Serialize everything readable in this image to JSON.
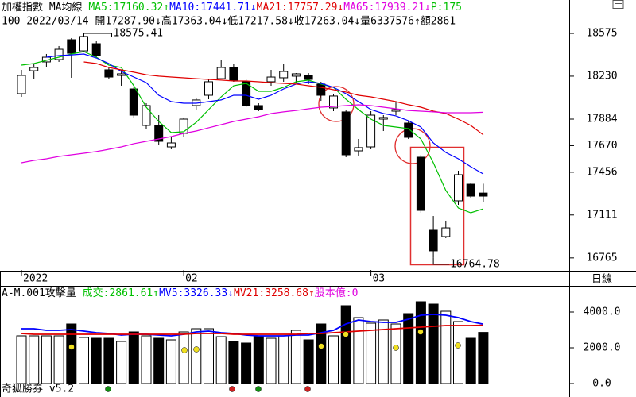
{
  "chart_data": [
    {
      "type": "candlestick",
      "title": "加權指數 MA均線",
      "info": "100 2022/03/14 開17287.90↓高17363.04↓低17217.58↓收17263.04↓量6337576↑額2861",
      "legend_tail": "P:175",
      "legend_tail_color": "#00c000",
      "categories": [
        "2022",
        null,
        null,
        null,
        null,
        null,
        null,
        null,
        null,
        null,
        null,
        null,
        null,
        "02",
        null,
        null,
        null,
        null,
        null,
        null,
        null,
        null,
        null,
        null,
        null,
        null,
        null,
        null,
        "03",
        null,
        null,
        null,
        null,
        null,
        null,
        null,
        null,
        null
      ],
      "open": [
        18089,
        18274,
        18345,
        18364,
        18524,
        18434,
        18492,
        18281,
        18236,
        18127,
        17833,
        17833,
        17660,
        17769,
        17993,
        18076,
        18210,
        18300,
        18185,
        17993,
        18185,
        18217,
        18230,
        18236,
        18166,
        17974,
        17942,
        17628,
        17660,
        17884,
        17948,
        17852,
        17577,
        16988,
        16937,
        17225,
        17359,
        17287.9
      ],
      "high": [
        18281,
        18332,
        18409,
        18473,
        18537,
        18575.41,
        18511,
        18300,
        18281,
        18140,
        18012,
        17916,
        17743,
        17897,
        18057,
        18204,
        18364,
        18332,
        18204,
        18012,
        18281,
        18332,
        18255,
        18255,
        18185,
        18089,
        17954,
        17724,
        17948,
        17916,
        18025,
        17871,
        17596,
        17103,
        17065,
        17468,
        17372,
        17363.04
      ],
      "low": [
        18063,
        18204,
        18306,
        18345,
        18217,
        18422,
        18383,
        18204,
        18153,
        17897,
        17807,
        17679,
        17641,
        17743,
        17961,
        18044,
        18204,
        18185,
        17980,
        17948,
        18153,
        18185,
        18172,
        18166,
        18031,
        17948,
        17577,
        17590,
        17641,
        17788,
        17916,
        17724,
        17129,
        16764.78,
        16924,
        17193,
        17244,
        17217.58
      ],
      "close": [
        18236,
        18300,
        18383,
        18447,
        18415,
        18550,
        18396,
        18223,
        18249,
        17916,
        17993,
        17705,
        17692,
        17884,
        18038,
        18185,
        18300,
        18198,
        17993,
        17961,
        18223,
        18268,
        18249,
        18204,
        18076,
        18070,
        17596,
        17654,
        17916,
        17897,
        17961,
        17737,
        17148,
        16822,
        17007,
        17436,
        17263,
        17263.04
      ],
      "series": [
        {
          "name": "MA5",
          "legend_label": ":17160.32↑",
          "color": "#00c000",
          "values": [
            18319,
            18332,
            18358,
            18383,
            18409,
            18428,
            18383,
            18319,
            18300,
            18153,
            17980,
            17865,
            17775,
            17782,
            17858,
            17961,
            18063,
            18153,
            18172,
            18108,
            18108,
            18140,
            18185,
            18198,
            18166,
            18140,
            18044,
            17961,
            17884,
            17833,
            17820,
            17807,
            17724,
            17532,
            17308,
            17167,
            17129,
            17160.32
          ]
        },
        {
          "name": "MA10",
          "legend_label": ":17441.71↓",
          "color": "#0000ff",
          "values": [
            null,
            null,
            18383,
            18396,
            18402,
            18409,
            18377,
            18332,
            18268,
            18223,
            18178,
            18076,
            18025,
            18012,
            18012,
            18025,
            18038,
            18076,
            18076,
            18044,
            18076,
            18127,
            18166,
            18185,
            18172,
            18140,
            18089,
            18025,
            17961,
            17929,
            17910,
            17871,
            17820,
            17692,
            17615,
            17564,
            17500,
            17441.71
          ]
        },
        {
          "name": "MA21",
          "legend_label": ":17757.29↓",
          "color": "#e00000",
          "values": [
            null,
            null,
            null,
            null,
            null,
            18345,
            18332,
            18300,
            18281,
            18262,
            18242,
            18230,
            18223,
            18217,
            18210,
            18204,
            18198,
            18191,
            18191,
            18185,
            18178,
            18172,
            18166,
            18153,
            18140,
            18121,
            18102,
            18076,
            18063,
            18044,
            18025,
            18000,
            17980,
            17948,
            17929,
            17884,
            17833,
            17757.29
          ]
        },
        {
          "name": "MA65",
          "legend_label": ":17939.21↓",
          "color": "#e000e0",
          "values": [
            17532,
            17551,
            17564,
            17583,
            17596,
            17609,
            17622,
            17641,
            17660,
            17686,
            17705,
            17724,
            17743,
            17769,
            17788,
            17814,
            17839,
            17865,
            17884,
            17903,
            17929,
            17942,
            17954,
            17967,
            17980,
            17986,
            17993,
            17999,
            17993,
            17980,
            17967,
            17954,
            17948,
            17942,
            17935,
            17935,
            17935,
            17939.21
          ]
        }
      ],
      "ylim": [
        16668,
        18844
      ],
      "yticks": [
        18575,
        18230,
        17884,
        17670,
        17456,
        17111,
        16765
      ]
    },
    {
      "type": "bar",
      "title": "A-M.001攻擊量",
      "legend_tail": "股本億:0",
      "legend_tail_color": "#e000e0",
      "series": [
        {
          "name": "成交",
          "legend_label": ":2861.61↑",
          "color": "#00c000",
          "values": [
            2667,
            2667,
            2667,
            2667,
            3333,
            2578,
            2533,
            2533,
            2356,
            2889,
            2667,
            2533,
            2444,
            2889,
            3067,
            3067,
            2622,
            2356,
            2267,
            2667,
            2533,
            2667,
            2978,
            2444,
            3333,
            2667,
            4356,
            3689,
            3378,
            3556,
            3333,
            3911,
            4578,
            4444,
            4044,
            3467,
            2533,
            2861.61
          ]
        },
        {
          "name": "MV5",
          "legend_label": ":3326.33↓",
          "color": "#0000ff",
          "values": [
            3067,
            3067,
            2978,
            2978,
            3022,
            2933,
            2844,
            2800,
            2711,
            2756,
            2756,
            2711,
            2667,
            2756,
            2889,
            2933,
            2844,
            2800,
            2711,
            2667,
            2667,
            2667,
            2711,
            2711,
            2844,
            2978,
            3333,
            3556,
            3467,
            3422,
            3422,
            3600,
            3822,
            3867,
            3822,
            3689,
            3467,
            3326.33
          ]
        },
        {
          "name": "MV21",
          "legend_label": ":3258.68↑",
          "color": "#e00000",
          "values": [
            2800,
            2756,
            2756,
            2756,
            2756,
            2756,
            2756,
            2756,
            2756,
            2756,
            2756,
            2756,
            2756,
            2756,
            2800,
            2800,
            2800,
            2756,
            2756,
            2756,
            2756,
            2756,
            2756,
            2800,
            2800,
            2844,
            2889,
            2933,
            2978,
            3022,
            3067,
            3111,
            3156,
            3200,
            3244,
            3244,
            3244,
            3258.68
          ]
        }
      ],
      "ylim": [
        -622,
        5378
      ],
      "yticks": [
        {
          "value": 4000,
          "label": "4000.0"
        },
        {
          "value": 2000,
          "label": "2000.0"
        },
        {
          "value": 0,
          "label": "0.0"
        }
      ]
    }
  ],
  "period": "日線",
  "footer": "奇狐勝券 v5.2"
}
